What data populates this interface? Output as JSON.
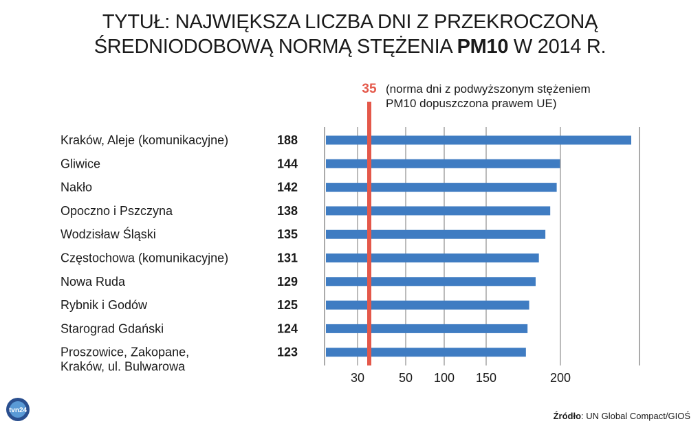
{
  "title": {
    "line1": "TYTUŁ: NAJWIĘKSZA LICZBA DNI Z PRZEKROCZONĄ",
    "line2_pre": "ŚREDNIODOBOWĄ NORMĄ STĘŻENIA ",
    "line2_bold": "PM10",
    "line2_post": " W 2014 R."
  },
  "norm": {
    "value_label": "35",
    "note_line1": "(norma dni z podwyższonym stężeniem",
    "note_line2": "PM10 dopuszczona prawem UE)"
  },
  "source": {
    "prefix": "Źródło",
    "text": ": UN Global Compact/GIOŚ"
  },
  "logo": {
    "text": "tvn24"
  },
  "colors": {
    "bar": "#3f7cc2",
    "norm_line": "#e4584a",
    "grid": "#555555"
  },
  "chart_data": {
    "type": "bar",
    "orientation": "horizontal",
    "categories": [
      [
        "Kraków, Aleje (komunikacyjne)"
      ],
      [
        "Gliwice"
      ],
      [
        "Nakło"
      ],
      [
        "Opoczno i Pszczyna"
      ],
      [
        "Wodzisław Śląski"
      ],
      [
        "Częstochowa (komunikacyjne)"
      ],
      [
        "Nowa Ruda"
      ],
      [
        "Rybnik i Godów"
      ],
      [
        "Starograd Gdański"
      ],
      [
        "Proszowice, Zakopane,",
        "Kraków, ul. Bulwarowa"
      ]
    ],
    "values": [
      188,
      144,
      142,
      138,
      135,
      131,
      129,
      125,
      124,
      123
    ],
    "value_labels": [
      "188",
      "144",
      "142",
      "138",
      "135",
      "131",
      "129",
      "125",
      "124",
      "123"
    ],
    "x_ticks": [
      30,
      50,
      100,
      150,
      200
    ],
    "x_tick_labels": [
      "30",
      "50",
      "100",
      "150",
      "200"
    ],
    "reference_line": 35,
    "grid": true
  }
}
